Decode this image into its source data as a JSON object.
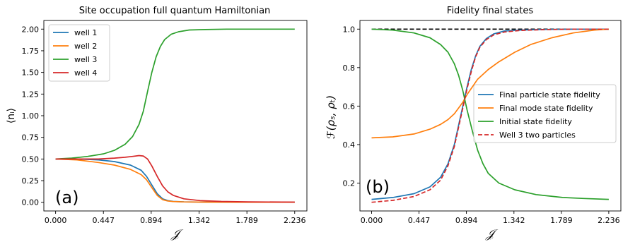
{
  "charts": [
    {
      "title": "Site occupation full quantum Hamiltonian",
      "xlabel": "𝒥",
      "ylabel": "⟨nᵢ⟩",
      "panel_label": "(a)",
      "xticks": [
        "0.000",
        "0.447",
        "0.894",
        "1.342",
        "1.789",
        "2.236"
      ],
      "yticks": [
        "0.00",
        "0.25",
        "0.50",
        "0.75",
        "1.00",
        "1.25",
        "1.50",
        "1.75",
        "2.00"
      ],
      "legend": [
        "well 1",
        "well 2",
        "well 3",
        "well 4"
      ]
    },
    {
      "title": "Fidelity final states",
      "xlabel": "𝒥",
      "ylabel": "ℱ(ρₛ, ρₜ)",
      "panel_label": "(b)",
      "xticks": [
        "0.000",
        "0.447",
        "0.894",
        "1.342",
        "1.789",
        "2.236"
      ],
      "yticks": [
        "0.2",
        "0.4",
        "0.6",
        "0.8",
        "1.0"
      ],
      "legend": [
        "Final particle state fidelity",
        "Final mode state fidelity",
        "Initial state fidelity",
        "Well 3 two particles"
      ]
    }
  ],
  "colors": {
    "blue": "#1f77b4",
    "orange": "#ff7f0e",
    "green": "#2ca02c",
    "red": "#d62728",
    "black": "#000000"
  },
  "chart_data": [
    {
      "type": "line",
      "title": "Site occupation full quantum Hamiltonian",
      "xlabel": "𝒥",
      "ylabel": "⟨nᵢ⟩",
      "xlim": [
        -0.11,
        2.35
      ],
      "ylim": [
        -0.1,
        2.1
      ],
      "legend_position": "top-left",
      "grid": false,
      "series": [
        {
          "name": "well 1",
          "color": "#1f77b4",
          "x": [
            0,
            0.2,
            0.4,
            0.55,
            0.7,
            0.8,
            0.85,
            0.9,
            0.95,
            1.0,
            1.05,
            1.1,
            1.2,
            1.4,
            1.7,
            2.236
          ],
          "y": [
            0.5,
            0.5,
            0.49,
            0.47,
            0.43,
            0.37,
            0.3,
            0.2,
            0.1,
            0.04,
            0.02,
            0.01,
            0.005,
            0.002,
            0.001,
            0.001
          ]
        },
        {
          "name": "well 2",
          "color": "#ff7f0e",
          "x": [
            0,
            0.2,
            0.4,
            0.55,
            0.7,
            0.8,
            0.85,
            0.9,
            0.95,
            1.0,
            1.05,
            1.1,
            1.2,
            1.4,
            1.7,
            2.236
          ],
          "y": [
            0.5,
            0.49,
            0.46,
            0.43,
            0.38,
            0.32,
            0.26,
            0.17,
            0.08,
            0.03,
            0.015,
            0.008,
            0.004,
            0.002,
            0.001,
            0.001
          ]
        },
        {
          "name": "well 3",
          "color": "#2ca02c",
          "x": [
            0,
            0.15,
            0.3,
            0.45,
            0.55,
            0.65,
            0.72,
            0.78,
            0.82,
            0.86,
            0.9,
            0.94,
            0.98,
            1.02,
            1.08,
            1.15,
            1.25,
            1.4,
            1.6,
            2.236
          ],
          "y": [
            0.5,
            0.51,
            0.53,
            0.56,
            0.6,
            0.67,
            0.76,
            0.9,
            1.05,
            1.28,
            1.5,
            1.68,
            1.8,
            1.88,
            1.94,
            1.97,
            1.99,
            1.995,
            2.0,
            2.0
          ]
        },
        {
          "name": "well 4",
          "color": "#d62728",
          "x": [
            0,
            0.2,
            0.4,
            0.55,
            0.65,
            0.72,
            0.78,
            0.82,
            0.86,
            0.9,
            0.95,
            1.0,
            1.05,
            1.1,
            1.2,
            1.35,
            1.55,
            1.8,
            2.236
          ],
          "y": [
            0.5,
            0.5,
            0.5,
            0.51,
            0.52,
            0.53,
            0.54,
            0.535,
            0.5,
            0.42,
            0.3,
            0.19,
            0.12,
            0.08,
            0.04,
            0.02,
            0.01,
            0.005,
            0.002
          ]
        }
      ]
    },
    {
      "type": "line",
      "title": "Fidelity final states",
      "xlabel": "𝒥",
      "ylabel": "ℱ(ρₛ, ρₜ)",
      "xlim": [
        -0.11,
        2.35
      ],
      "ylim": [
        0.055,
        1.045
      ],
      "legend_position": "center-right",
      "grid": false,
      "series": [
        {
          "name": "",
          "color": "#000000",
          "style": "dashed",
          "x": [
            0,
            2.236
          ],
          "y": [
            1.0,
            1.0
          ]
        },
        {
          "name": "Final particle state fidelity",
          "color": "#1f77b4",
          "x": [
            0,
            0.2,
            0.4,
            0.55,
            0.65,
            0.72,
            0.78,
            0.82,
            0.86,
            0.9,
            0.94,
            0.98,
            1.02,
            1.08,
            1.15,
            1.25,
            1.4,
            1.6,
            1.9,
            2.236
          ],
          "y": [
            0.115,
            0.125,
            0.145,
            0.18,
            0.23,
            0.3,
            0.4,
            0.5,
            0.6,
            0.7,
            0.79,
            0.86,
            0.91,
            0.95,
            0.975,
            0.99,
            0.995,
            0.998,
            1.0,
            1.0
          ]
        },
        {
          "name": "Final mode state fidelity",
          "color": "#ff7f0e",
          "x": [
            0,
            0.2,
            0.4,
            0.55,
            0.65,
            0.72,
            0.78,
            0.82,
            0.86,
            0.9,
            0.95,
            1.0,
            1.1,
            1.2,
            1.35,
            1.5,
            1.7,
            1.9,
            2.1,
            2.236
          ],
          "y": [
            0.435,
            0.44,
            0.455,
            0.48,
            0.505,
            0.53,
            0.56,
            0.59,
            0.62,
            0.66,
            0.7,
            0.74,
            0.79,
            0.83,
            0.88,
            0.92,
            0.955,
            0.98,
            0.995,
            1.0
          ]
        },
        {
          "name": "Initial state fidelity",
          "color": "#2ca02c",
          "x": [
            0,
            0.2,
            0.4,
            0.55,
            0.65,
            0.72,
            0.78,
            0.82,
            0.86,
            0.9,
            0.95,
            1.0,
            1.05,
            1.1,
            1.2,
            1.35,
            1.55,
            1.8,
            2.0,
            2.236
          ],
          "y": [
            1.0,
            0.995,
            0.98,
            0.955,
            0.92,
            0.88,
            0.82,
            0.76,
            0.68,
            0.58,
            0.47,
            0.37,
            0.3,
            0.25,
            0.2,
            0.165,
            0.14,
            0.125,
            0.12,
            0.115
          ]
        },
        {
          "name": "Well 3 two particles",
          "color": "#d62728",
          "style": "dashed",
          "x": [
            0,
            0.2,
            0.4,
            0.55,
            0.65,
            0.72,
            0.78,
            0.82,
            0.86,
            0.9,
            0.94,
            0.98,
            1.02,
            1.08,
            1.15,
            1.25,
            1.4,
            1.6,
            1.9,
            2.236
          ],
          "y": [
            0.1,
            0.11,
            0.13,
            0.165,
            0.215,
            0.29,
            0.39,
            0.49,
            0.59,
            0.69,
            0.78,
            0.855,
            0.905,
            0.945,
            0.97,
            0.985,
            0.993,
            0.997,
            1.0,
            1.0
          ]
        }
      ]
    }
  ]
}
